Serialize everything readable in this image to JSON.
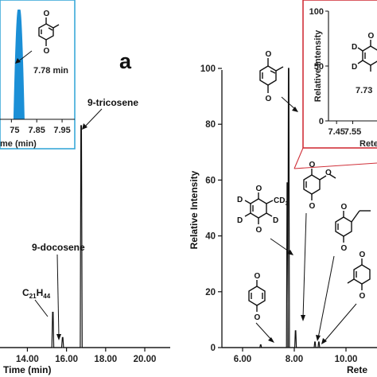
{
  "chart_data": [
    {
      "type": "line",
      "panel": "left",
      "xlabel": "Time (min)",
      "xticks": [
        "14.00",
        "16.00",
        "18.00",
        "20.00"
      ],
      "xlim": [
        12.6,
        21.3
      ],
      "ylim": [
        0,
        100
      ],
      "peaks": [
        {
          "x": 15.3,
          "y": 14,
          "label": "C21H44"
        },
        {
          "x": 15.8,
          "y": 4,
          "label": "9-docosene"
        },
        {
          "x": 16.75,
          "y": 88,
          "label": "9-tricosene"
        }
      ],
      "annotations": {
        "c21": {
          "base": "C",
          "sub1": "21",
          "mid": "H",
          "sub2": "44"
        },
        "docosene": "9-docosene",
        "tricosene": "9-tricosene"
      }
    },
    {
      "type": "area",
      "panel": "left-inset",
      "xlabel": "me (min)",
      "xticks": [
        "75",
        "7.85",
        "7.95"
      ],
      "xlim": [
        7.705,
        8.0
      ],
      "peak": {
        "x": 7.78,
        "y": 100,
        "label": "7.78 min"
      },
      "color": "#1b8fd6",
      "border_color": "#3aa8d8"
    },
    {
      "type": "line",
      "panel": "right",
      "ylabel": "Relative Intensity",
      "xlabel": "Rete",
      "xticks": [
        "6.00",
        "8.00",
        "10.00"
      ],
      "yticks": [
        "0",
        "20",
        "40",
        "60",
        "80",
        "100"
      ],
      "xlim": [
        5.2,
        11.2
      ],
      "ylim": [
        0,
        100
      ],
      "peaks": [
        {
          "x": 6.7,
          "y": 1
        },
        {
          "x": 7.78,
          "y": 100
        },
        {
          "x": 7.73,
          "y": 59
        },
        {
          "x": 8.05,
          "y": 6
        },
        {
          "x": 8.8,
          "y": 2
        },
        {
          "x": 8.95,
          "y": 2
        }
      ]
    },
    {
      "type": "line",
      "panel": "right-inset",
      "ylabel": "Relative Intensity",
      "xlabel": "Rete",
      "yticks": [
        "0",
        "50",
        "100"
      ],
      "xticks": [
        "7.45",
        "7.55"
      ],
      "peak_label": "7.73",
      "border_color": "#d0313a"
    }
  ],
  "panel_label": "a",
  "structure_labels": {
    "oxygen": "O",
    "deuterium": "D",
    "cd3": {
      "base": "CD",
      "sub": "3"
    }
  }
}
